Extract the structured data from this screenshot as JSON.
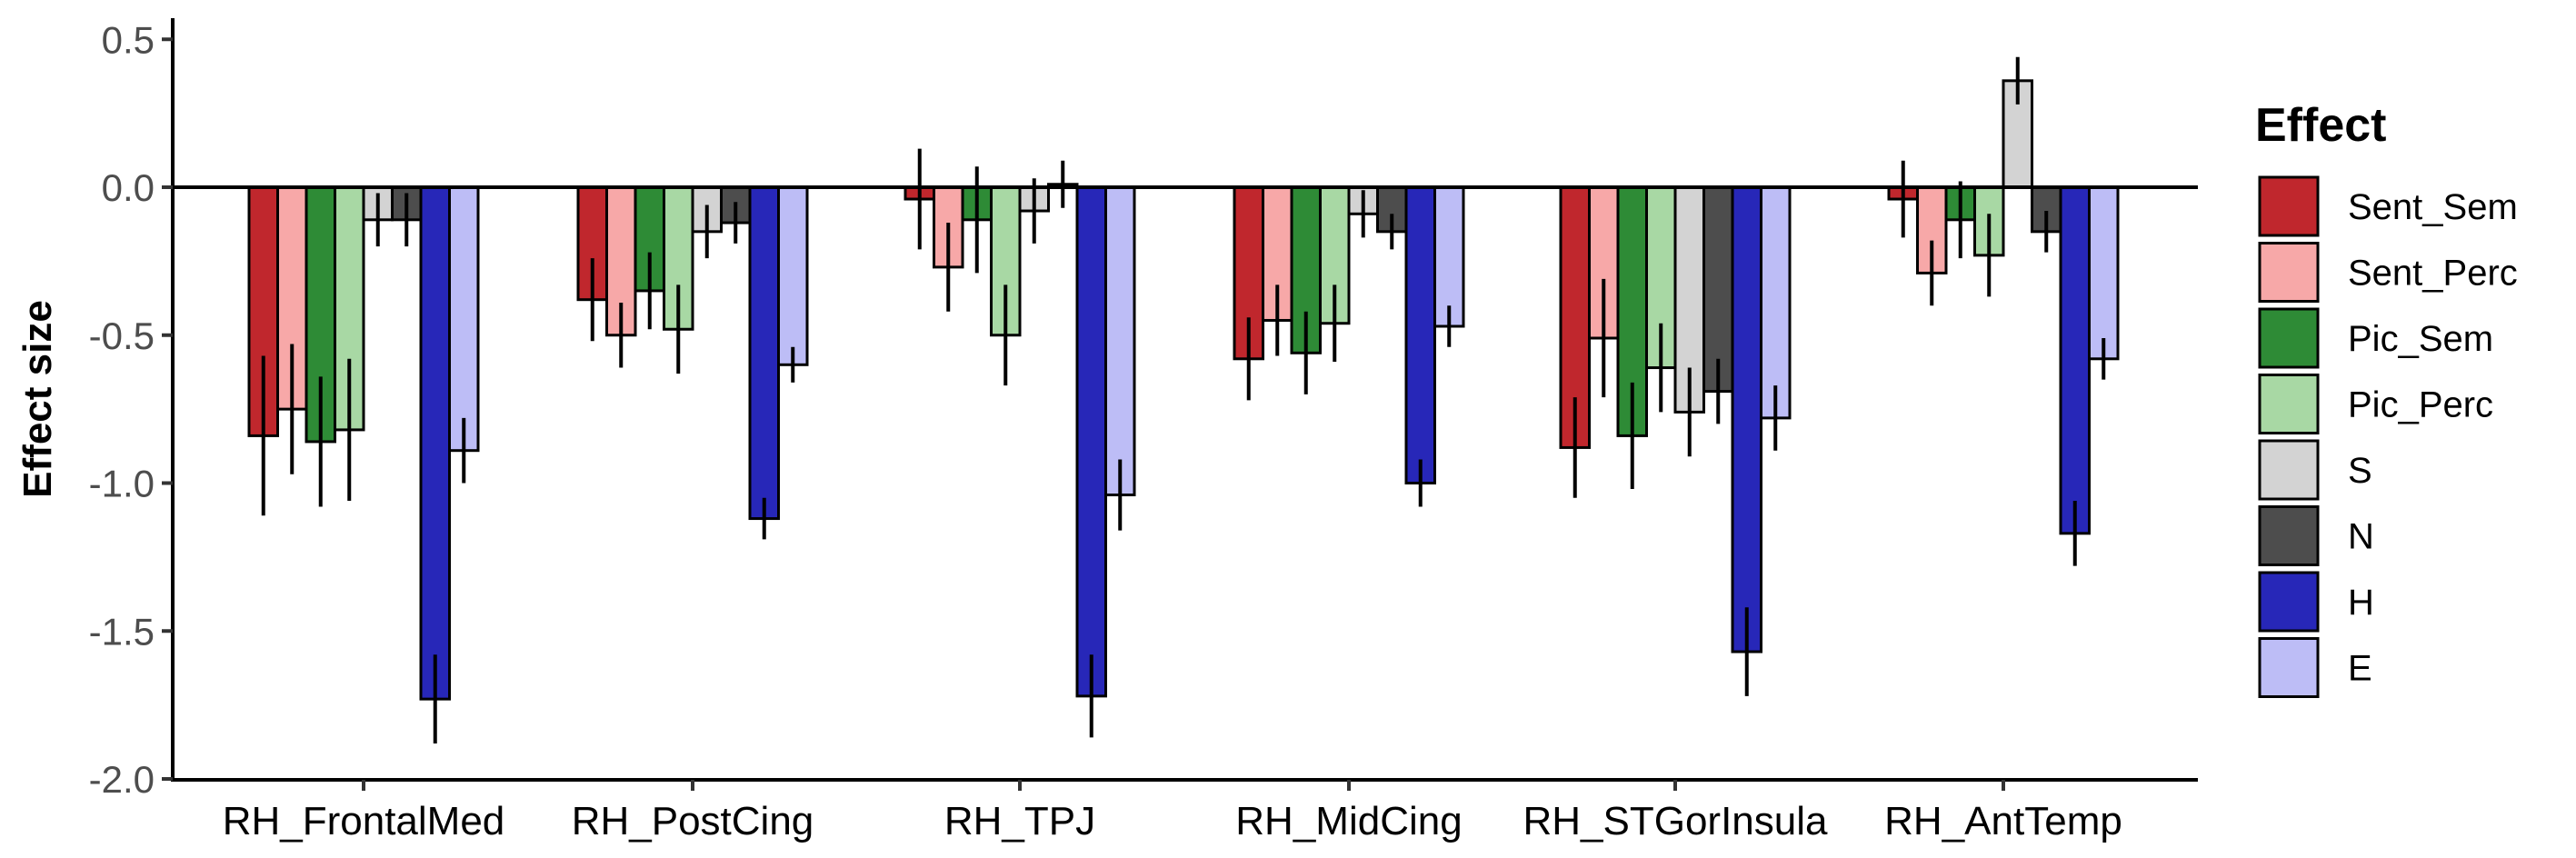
{
  "chart_data": {
    "type": "bar",
    "title": "",
    "xlabel": "",
    "ylabel": "Effect size",
    "ylim": [
      -2.0,
      0.55
    ],
    "yticks": [
      0.5,
      0.0,
      -0.5,
      -1.0,
      -1.5,
      -2.0
    ],
    "ytick_labels": [
      "0.5",
      "0.0",
      "-0.5",
      "-1.0",
      "-1.5",
      "-2.0"
    ],
    "grid": false,
    "zero_line": true,
    "legend": {
      "title": "Effect",
      "placement": "right"
    },
    "categories": [
      "RH_FrontalMed",
      "RH_PostCing",
      "RH_TPJ",
      "RH_MidCing",
      "RH_STGorInsula",
      "RH_AntTemp"
    ],
    "series": [
      {
        "name": "Sent_Sem",
        "color": "#c0272d",
        "values": [
          -0.84,
          -0.38,
          -0.04,
          -0.58,
          -0.88,
          -0.04
        ],
        "errors": [
          0.27,
          0.14,
          0.17,
          0.14,
          0.17,
          0.13
        ]
      },
      {
        "name": "Sent_Perc",
        "color": "#f7a8a8",
        "values": [
          -0.75,
          -0.5,
          -0.27,
          -0.45,
          -0.51,
          -0.29
        ],
        "errors": [
          0.22,
          0.11,
          0.15,
          0.12,
          0.2,
          0.11
        ]
      },
      {
        "name": "Pic_Sem",
        "color": "#2e8b36",
        "values": [
          -0.86,
          -0.35,
          -0.11,
          -0.56,
          -0.84,
          -0.11
        ],
        "errors": [
          0.22,
          0.13,
          0.18,
          0.14,
          0.18,
          0.13
        ]
      },
      {
        "name": "Pic_Perc",
        "color": "#a8d8a4",
        "values": [
          -0.82,
          -0.48,
          -0.5,
          -0.46,
          -0.61,
          -0.23
        ],
        "errors": [
          0.24,
          0.15,
          0.17,
          0.13,
          0.15,
          0.14
        ]
      },
      {
        "name": "S",
        "color": "#d3d3d3",
        "values": [
          -0.11,
          -0.15,
          -0.08,
          -0.09,
          -0.76,
          0.36
        ],
        "errors": [
          0.09,
          0.09,
          0.11,
          0.08,
          0.15,
          0.08
        ]
      },
      {
        "name": "N",
        "color": "#4d4d4d",
        "values": [
          -0.11,
          -0.12,
          0.01,
          -0.15,
          -0.69,
          -0.15
        ],
        "errors": [
          0.09,
          0.07,
          0.08,
          0.06,
          0.11,
          0.07
        ]
      },
      {
        "name": "H",
        "color": "#2727b8",
        "values": [
          -1.73,
          -1.12,
          -1.72,
          -1.0,
          -1.57,
          -1.17
        ],
        "errors": [
          0.15,
          0.07,
          0.14,
          0.08,
          0.15,
          0.11
        ]
      },
      {
        "name": "E",
        "color": "#bdbdf6",
        "values": [
          -0.89,
          -0.6,
          -1.04,
          -0.47,
          -0.78,
          -0.58
        ],
        "errors": [
          0.11,
          0.06,
          0.12,
          0.07,
          0.11,
          0.07
        ]
      }
    ]
  }
}
